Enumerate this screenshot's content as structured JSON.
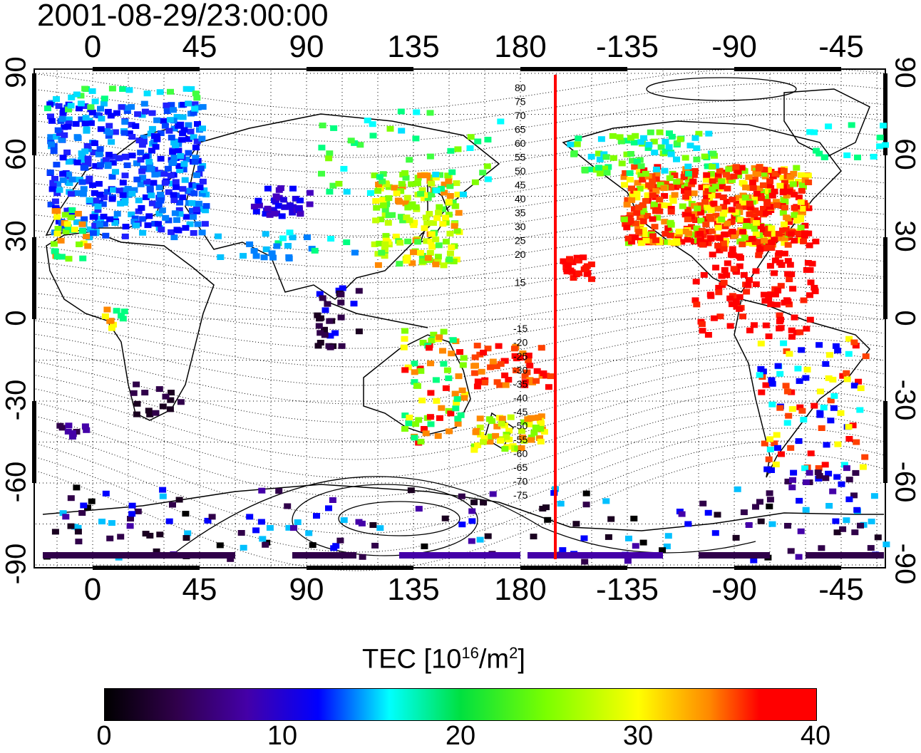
{
  "title": "2001-08-29/23:00:00",
  "map": {
    "top_lon_labels": [
      "0",
      "45",
      "90",
      "135",
      "180",
      "-135",
      "-90",
      "-45"
    ],
    "bottom_lon_labels": [
      "0",
      "45",
      "90",
      "135",
      "180",
      "-135",
      "-90",
      "-45"
    ],
    "lat_labels": [
      "90",
      "60",
      "30",
      "0",
      "-30",
      "-60",
      "-90"
    ],
    "contour_labels_north": [
      "80",
      "75",
      "70",
      "65",
      "60",
      "55",
      "50",
      "45",
      "40",
      "35",
      "30",
      "25",
      "20",
      "15"
    ],
    "contour_labels_south": [
      "-15",
      "-20",
      "-25",
      "-30",
      "-35",
      "-40",
      "-45",
      "-50",
      "-55",
      "-60",
      "-65",
      "-70",
      "-75"
    ],
    "terminator_color": "#ff0000"
  },
  "colorbar": {
    "title_main": "TEC  [10",
    "title_exp": "16",
    "title_unit": "/m",
    "title_exp2": "2",
    "title_end": "]",
    "ticks": [
      "0",
      "10",
      "20",
      "30",
      "40"
    ],
    "colors": [
      "#000000",
      "#4400a8",
      "#0000ff",
      "#00ffff",
      "#00e040",
      "#ffff00",
      "#ff8800",
      "#ff0000"
    ]
  }
}
